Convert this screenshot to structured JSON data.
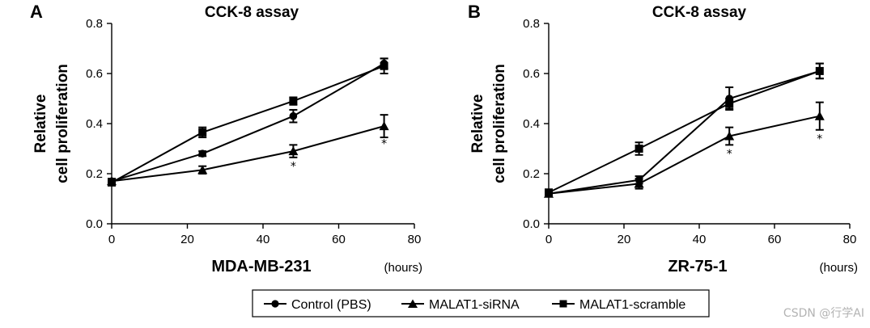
{
  "chart_data": [
    {
      "panel": "A",
      "type": "line",
      "title": "CCK-8 assay",
      "ylabel_lines": [
        "Relative",
        "cell proliferation"
      ],
      "xlabel": "MDA-MB-231",
      "x_unit": "(hours)",
      "xlim": [
        0,
        80
      ],
      "ylim": [
        0.0,
        0.8
      ],
      "x_ticks": [
        "0",
        "20",
        "40",
        "60",
        "80"
      ],
      "y_ticks": [
        "0.0",
        "0.2",
        "0.4",
        "0.6",
        "0.8"
      ],
      "x": [
        0,
        24,
        48,
        72
      ],
      "series": [
        {
          "name": "Control (PBS)",
          "marker": "circle",
          "values": [
            0.17,
            0.28,
            0.43,
            0.64
          ],
          "errors": [
            0.01,
            0.01,
            0.025,
            0.02
          ]
        },
        {
          "name": "MALAT1-siRNA",
          "marker": "triangle",
          "values": [
            0.17,
            0.215,
            0.29,
            0.39
          ],
          "errors": [
            0.01,
            0.015,
            0.025,
            0.045
          ]
        },
        {
          "name": "MALAT1-scramble",
          "marker": "square",
          "values": [
            0.165,
            0.365,
            0.49,
            0.63
          ],
          "errors": [
            0.012,
            0.02,
            0.015,
            0.03
          ]
        }
      ],
      "annotations": [
        {
          "text": "*",
          "x": 48,
          "y": 0.215
        },
        {
          "text": "*",
          "x": 72,
          "y": 0.305
        }
      ]
    },
    {
      "panel": "B",
      "type": "line",
      "title": "CCK-8 assay",
      "ylabel_lines": [
        "Relative",
        "cell proliferation"
      ],
      "xlabel": "ZR-75-1",
      "x_unit": "(hours)",
      "xlim": [
        0,
        80
      ],
      "ylim": [
        0.0,
        0.8
      ],
      "x_ticks": [
        "0",
        "20",
        "40",
        "60",
        "80"
      ],
      "y_ticks": [
        "0.0",
        "0.2",
        "0.4",
        "0.6",
        "0.8"
      ],
      "x": [
        0,
        24,
        48,
        72
      ],
      "series": [
        {
          "name": "Control (PBS)",
          "marker": "circle",
          "values": [
            0.12,
            0.175,
            0.5,
            0.61
          ],
          "errors": [
            0.01,
            0.015,
            0.045,
            0.03
          ]
        },
        {
          "name": "MALAT1-siRNA",
          "marker": "triangle",
          "values": [
            0.12,
            0.16,
            0.35,
            0.43
          ],
          "errors": [
            0.01,
            0.02,
            0.035,
            0.055
          ]
        },
        {
          "name": "MALAT1-scramble",
          "marker": "square",
          "values": [
            0.125,
            0.3,
            0.48,
            0.61
          ],
          "errors": [
            0.01,
            0.025,
            0.02,
            0.03
          ]
        }
      ],
      "annotations": [
        {
          "text": "*",
          "x": 48,
          "y": 0.265
        },
        {
          "text": "*",
          "x": 72,
          "y": 0.325
        }
      ]
    }
  ],
  "legend": {
    "items": [
      {
        "label": "Control (PBS)",
        "marker": "circle"
      },
      {
        "label": "MALAT1-siRNA",
        "marker": "triangle"
      },
      {
        "label": "MALAT1-scramble",
        "marker": "square"
      }
    ]
  },
  "watermark": "CSDN @行学AI"
}
